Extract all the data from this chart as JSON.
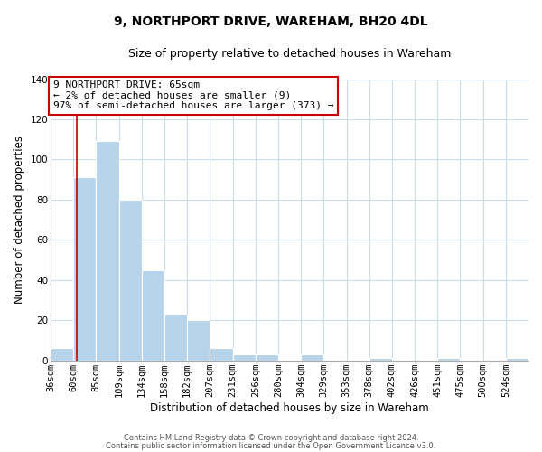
{
  "title": "9, NORTHPORT DRIVE, WAREHAM, BH20 4DL",
  "subtitle": "Size of property relative to detached houses in Wareham",
  "xlabel": "Distribution of detached houses by size in Wareham",
  "ylabel": "Number of detached properties",
  "bar_labels": [
    "36sqm",
    "60sqm",
    "85sqm",
    "109sqm",
    "134sqm",
    "158sqm",
    "182sqm",
    "207sqm",
    "231sqm",
    "256sqm",
    "280sqm",
    "304sqm",
    "329sqm",
    "353sqm",
    "378sqm",
    "402sqm",
    "426sqm",
    "451sqm",
    "475sqm",
    "500sqm",
    "524sqm"
  ],
  "bar_values": [
    6,
    91,
    109,
    80,
    45,
    23,
    20,
    6,
    3,
    3,
    0,
    3,
    0,
    0,
    1,
    0,
    0,
    1,
    0,
    0,
    1
  ],
  "bar_color": "#b8d4ea",
  "ylim": [
    0,
    140
  ],
  "yticks": [
    0,
    20,
    40,
    60,
    80,
    100,
    120,
    140
  ],
  "vline_color": "#cc0000",
  "vline_x": 65,
  "annotation_box_text_line1": "9 NORTHPORT DRIVE: 65sqm",
  "annotation_box_text_line2": "← 2% of detached houses are smaller (9)",
  "annotation_box_text_line3": "97% of semi-detached houses are larger (373) →",
  "annotation_box_facecolor": "white",
  "annotation_box_edgecolor": "#cc0000",
  "footnote1": "Contains HM Land Registry data © Crown copyright and database right 2024.",
  "footnote2": "Contains public sector information licensed under the Open Government Licence v3.0.",
  "bg_color": "white",
  "grid_color": "#c8dcea",
  "title_fontsize": 10,
  "subtitle_fontsize": 9,
  "axis_label_fontsize": 8.5,
  "tick_fontsize": 7.5,
  "annotation_fontsize": 8,
  "footnote_fontsize": 6,
  "bin_width": 25
}
